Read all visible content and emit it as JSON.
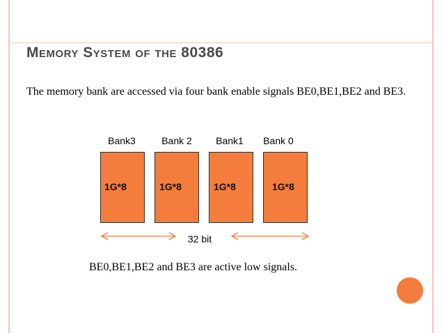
{
  "slide": {
    "title": "Memory System of the 80386",
    "body": "The memory bank are accessed via four bank enable signals BE0,BE1,BE2 and BE3.",
    "note": "BE0,BE1,BE2 and BE3 are active low signals."
  },
  "diagram": {
    "banks": [
      {
        "label": "Bank3",
        "size": "1G*8"
      },
      {
        "label": "Bank 2",
        "size": "1G*8"
      },
      {
        "label": "Bank1",
        "size": "1G*8"
      },
      {
        "label": "Bank 0",
        "size": "1G*8"
      }
    ],
    "width_label": "32 bit"
  },
  "colors": {
    "accent": "#f47d3d",
    "frame": "#f6c3b4",
    "title": "#494949"
  }
}
